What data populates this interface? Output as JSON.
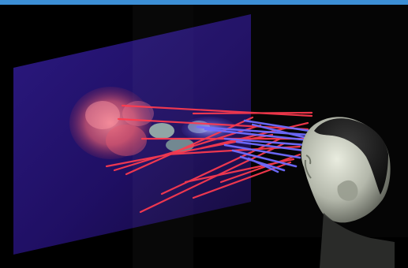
{
  "image": {
    "accent_bar_color": "#3c8fd6",
    "background_color": "#000000",
    "screen_color": "#20106a",
    "ray_colors": [
      "#ff3b4f",
      "#6f6cff"
    ],
    "head_color": "#cfd2c7"
  }
}
